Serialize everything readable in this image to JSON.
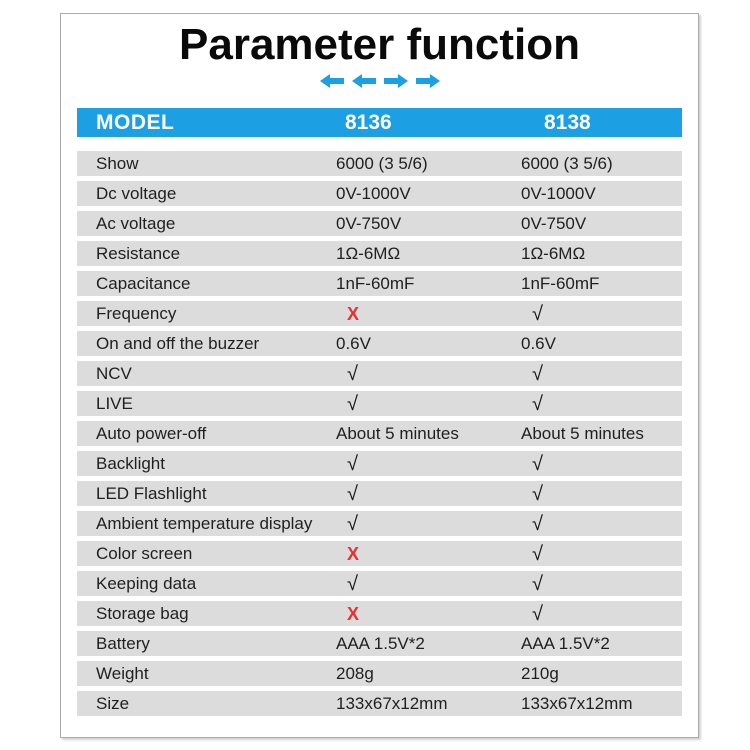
{
  "page": {
    "title": "Parameter function"
  },
  "decor": {
    "arrows": [
      "left",
      "left",
      "right",
      "right"
    ]
  },
  "table": {
    "header": {
      "model_label": "MODEL",
      "columns": [
        "8136",
        "8138"
      ]
    },
    "rows": [
      {
        "label": "Show",
        "values": [
          {
            "text": "6000 (3 5/6)",
            "type": "text"
          },
          {
            "text": "6000 (3 5/6)",
            "type": "text"
          }
        ]
      },
      {
        "label": "Dc voltage",
        "values": [
          {
            "text": "0V-1000V",
            "type": "text"
          },
          {
            "text": "0V-1000V",
            "type": "text"
          }
        ]
      },
      {
        "label": "Ac voltage",
        "values": [
          {
            "text": "0V-750V",
            "type": "text"
          },
          {
            "text": "0V-750V",
            "type": "text"
          }
        ]
      },
      {
        "label": "Resistance",
        "values": [
          {
            "text": "1Ω-6MΩ",
            "type": "text"
          },
          {
            "text": "1Ω-6MΩ",
            "type": "text"
          }
        ]
      },
      {
        "label": "Capacitance",
        "values": [
          {
            "text": "1nF-60mF",
            "type": "text"
          },
          {
            "text": "1nF-60mF",
            "type": "text"
          }
        ]
      },
      {
        "label": "Frequency",
        "values": [
          {
            "text": "X",
            "type": "cross"
          },
          {
            "text": "√",
            "type": "check"
          }
        ]
      },
      {
        "label": "On and off the buzzer",
        "values": [
          {
            "text": "0.6V",
            "type": "text"
          },
          {
            "text": "0.6V",
            "type": "text"
          }
        ]
      },
      {
        "label": "NCV",
        "values": [
          {
            "text": "√",
            "type": "check"
          },
          {
            "text": "√",
            "type": "check"
          }
        ]
      },
      {
        "label": "LIVE",
        "values": [
          {
            "text": "√",
            "type": "check"
          },
          {
            "text": "√",
            "type": "check"
          }
        ]
      },
      {
        "label": "Auto power-off",
        "values": [
          {
            "text": "About 5 minutes",
            "type": "text"
          },
          {
            "text": "About 5 minutes",
            "type": "text"
          }
        ]
      },
      {
        "label": "Backlight",
        "values": [
          {
            "text": "√",
            "type": "check"
          },
          {
            "text": "√",
            "type": "check"
          }
        ]
      },
      {
        "label": "LED Flashlight",
        "values": [
          {
            "text": "√",
            "type": "check"
          },
          {
            "text": "√",
            "type": "check"
          }
        ]
      },
      {
        "label": "Ambient temperature display",
        "values": [
          {
            "text": "√",
            "type": "check"
          },
          {
            "text": "√",
            "type": "check"
          }
        ]
      },
      {
        "label": "Color screen",
        "values": [
          {
            "text": "X",
            "type": "cross"
          },
          {
            "text": "√",
            "type": "check"
          }
        ]
      },
      {
        "label": "Keeping data",
        "values": [
          {
            "text": "√",
            "type": "check"
          },
          {
            "text": "√",
            "type": "check"
          }
        ]
      },
      {
        "label": "Storage bag",
        "values": [
          {
            "text": "X",
            "type": "cross"
          },
          {
            "text": "√",
            "type": "check"
          }
        ]
      },
      {
        "label": "Battery",
        "values": [
          {
            "text": "AAA 1.5V*2",
            "type": "text"
          },
          {
            "text": "AAA 1.5V*2",
            "type": "text"
          }
        ]
      },
      {
        "label": "Weight",
        "values": [
          {
            "text": "208g",
            "type": "text"
          },
          {
            "text": "210g",
            "type": "text"
          }
        ]
      },
      {
        "label": "Size",
        "values": [
          {
            "text": "133x67x12mm",
            "type": "text"
          },
          {
            "text": "133x67x12mm",
            "type": "text"
          }
        ]
      }
    ]
  },
  "colors": {
    "accent_blue": "#1C9FE3",
    "row_gray": "#DCDCDC",
    "cross_red": "#E8302E",
    "check_black": "#161616",
    "header_text": "#FFFFFF",
    "text_dark": "#1F1F1F",
    "title_black": "#0A0A0A",
    "frame_border": "#ABABAB"
  }
}
